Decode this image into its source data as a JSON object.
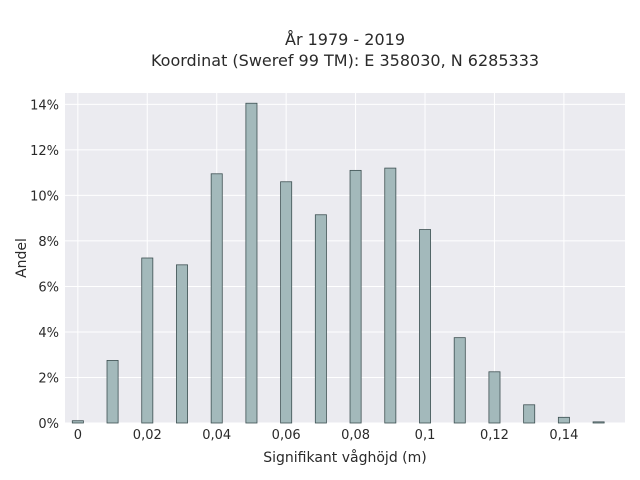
{
  "chart_data": {
    "type": "bar",
    "title": "År 1979 - 2019",
    "subtitle": "Koordinat (Sweref 99 TM): E 358030, N 6285333",
    "xlabel": "Signifikant våghöjd (m)",
    "ylabel": "Andel",
    "x": [
      0,
      0.01,
      0.02,
      0.03,
      0.04,
      0.05,
      0.06,
      0.07,
      0.08,
      0.09,
      0.1,
      0.11,
      0.12,
      0.13,
      0.14,
      0.15
    ],
    "values": [
      0.1,
      2.75,
      7.25,
      6.95,
      10.95,
      14.05,
      10.6,
      9.15,
      11.1,
      11.2,
      8.5,
      3.75,
      2.25,
      0.8,
      0.25,
      0.05
    ],
    "xlim": [
      -0.0037,
      0.1576
    ],
    "ylim": [
      0,
      14.5
    ],
    "x_ticks": [
      0,
      0.02,
      0.04,
      0.06,
      0.08,
      0.1,
      0.12,
      0.14
    ],
    "x_tick_labels": [
      "0",
      "0,02",
      "0,04",
      "0,06",
      "0,08",
      "0,1",
      "0,12",
      "0,14"
    ],
    "y_ticks": [
      0,
      2,
      4,
      6,
      8,
      10,
      12,
      14
    ],
    "y_tick_labels": [
      "0%",
      "2%",
      "4%",
      "6%",
      "8%",
      "10%",
      "12%",
      "14%"
    ],
    "grid": true,
    "legend": "none",
    "colors": {
      "bar_fill": "#a3b9bb",
      "bar_stroke": "#3d5052",
      "plot_bg": "#ebebf0",
      "grid": "#ffffff"
    }
  }
}
